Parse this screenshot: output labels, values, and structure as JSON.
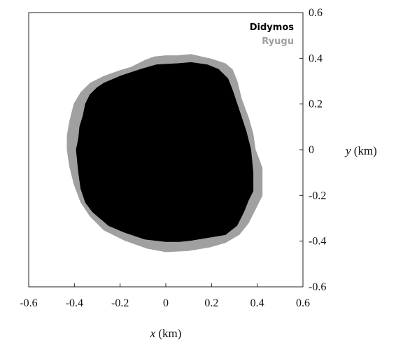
{
  "chart_data": {
    "type": "area",
    "title": "",
    "xlabel": {
      "var": "x",
      "unit": " (km)"
    },
    "ylabel": {
      "var": "y",
      "unit": " (km)"
    },
    "xlim": [
      -0.6,
      0.6
    ],
    "ylim": [
      -0.6,
      0.6
    ],
    "xticks": [
      "-0.6",
      "-0.4",
      "-0.2",
      "0",
      "0.2",
      "0.4",
      "0.6"
    ],
    "yticks": [
      "0.6",
      "0.4",
      "0.2",
      "0",
      "-0.2",
      "-0.4",
      "-0.6"
    ],
    "grid": false,
    "legend_position": "top-right",
    "series": [
      {
        "name": "Ryugu",
        "color": "#a0a0a0",
        "outline": [
          [
            -0.15,
            0.36
          ],
          [
            -0.09,
            0.39
          ],
          [
            -0.05,
            0.405
          ],
          [
            0.0,
            0.41
          ],
          [
            0.05,
            0.41
          ],
          [
            0.11,
            0.415
          ],
          [
            0.2,
            0.395
          ],
          [
            0.26,
            0.375
          ],
          [
            0.29,
            0.35
          ],
          [
            0.31,
            0.3
          ],
          [
            0.33,
            0.22
          ],
          [
            0.36,
            0.14
          ],
          [
            0.38,
            0.07
          ],
          [
            0.39,
            0.0
          ],
          [
            0.42,
            -0.08
          ],
          [
            0.42,
            -0.2
          ],
          [
            0.39,
            -0.26
          ],
          [
            0.36,
            -0.32
          ],
          [
            0.32,
            -0.37
          ],
          [
            0.26,
            -0.405
          ],
          [
            0.19,
            -0.425
          ],
          [
            0.1,
            -0.44
          ],
          [
            0.0,
            -0.445
          ],
          [
            -0.08,
            -0.43
          ],
          [
            -0.18,
            -0.395
          ],
          [
            -0.27,
            -0.35
          ],
          [
            -0.33,
            -0.29
          ],
          [
            -0.37,
            -0.23
          ],
          [
            -0.4,
            -0.15
          ],
          [
            -0.42,
            -0.07
          ],
          [
            -0.43,
            0.0
          ],
          [
            -0.43,
            0.06
          ],
          [
            -0.42,
            0.12
          ],
          [
            -0.4,
            0.2
          ],
          [
            -0.37,
            0.25
          ],
          [
            -0.33,
            0.29
          ],
          [
            -0.27,
            0.32
          ],
          [
            -0.2,
            0.345
          ]
        ]
      },
      {
        "name": "Didymos",
        "color": "#000000",
        "outline": [
          [
            -0.3,
            0.27
          ],
          [
            -0.27,
            0.29
          ],
          [
            -0.2,
            0.32
          ],
          [
            -0.11,
            0.35
          ],
          [
            -0.04,
            0.37
          ],
          [
            0.05,
            0.375
          ],
          [
            0.11,
            0.38
          ],
          [
            0.18,
            0.37
          ],
          [
            0.23,
            0.35
          ],
          [
            0.27,
            0.31
          ],
          [
            0.29,
            0.26
          ],
          [
            0.31,
            0.2
          ],
          [
            0.33,
            0.14
          ],
          [
            0.35,
            0.08
          ],
          [
            0.37,
            0.0
          ],
          [
            0.38,
            -0.1
          ],
          [
            0.38,
            -0.18
          ],
          [
            0.36,
            -0.22
          ],
          [
            0.34,
            -0.27
          ],
          [
            0.31,
            -0.33
          ],
          [
            0.26,
            -0.37
          ],
          [
            0.2,
            -0.38
          ],
          [
            0.11,
            -0.395
          ],
          [
            0.06,
            -0.4
          ],
          [
            0.0,
            -0.4
          ],
          [
            -0.09,
            -0.39
          ],
          [
            -0.18,
            -0.36
          ],
          [
            -0.25,
            -0.33
          ],
          [
            -0.32,
            -0.27
          ],
          [
            -0.35,
            -0.23
          ],
          [
            -0.37,
            -0.17
          ],
          [
            -0.38,
            -0.1
          ],
          [
            -0.39,
            0.0
          ],
          [
            -0.38,
            0.05
          ],
          [
            -0.375,
            0.1
          ],
          [
            -0.36,
            0.15
          ],
          [
            -0.35,
            0.2
          ],
          [
            -0.33,
            0.24
          ]
        ]
      }
    ],
    "legend": [
      {
        "label": "Didymos",
        "color": "#000000"
      },
      {
        "label": "Ryugu",
        "color": "#a0a0a0"
      }
    ]
  }
}
